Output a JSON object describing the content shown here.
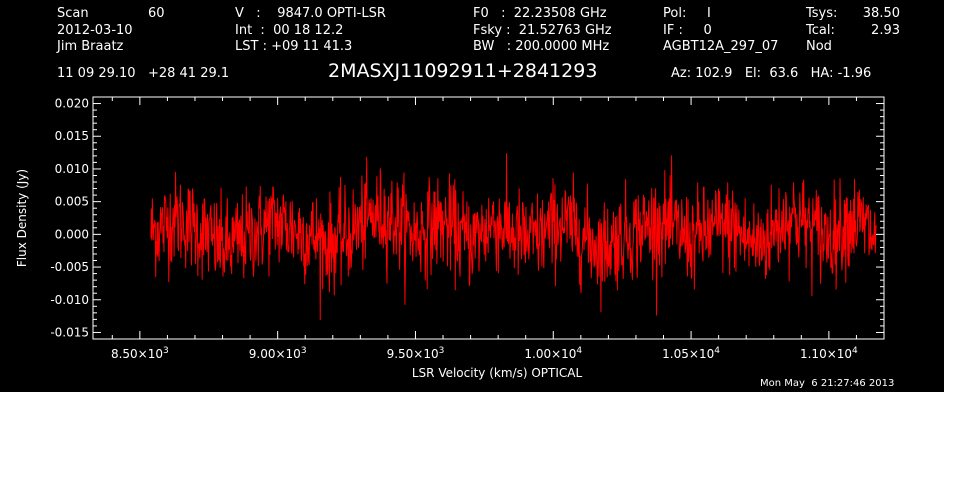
{
  "header": {
    "col1": {
      "scan_label": "Scan",
      "scan_value": "60",
      "date": "2012-03-10",
      "observer": "Jim Braatz"
    },
    "col2": {
      "v_line": "V   :    9847.0 OPTI-LSR",
      "int_line": "Int  :  00 18 12.2",
      "lst_line": "LST : +09 11 41.3"
    },
    "col3": {
      "f0_line": "F0   :  22.23508 GHz",
      "fsky_line": "Fsky :  21.52763 GHz",
      "bw_line": "BW   : 200.0000 MHz"
    },
    "col4": {
      "pol_line": "Pol:     I",
      "if_line": "IF :     0",
      "project": "AGBT12A_297_07"
    },
    "col5": {
      "tsys_label": "Tsys:",
      "tsys_value": "38.50",
      "tcal_label": "Tcal:",
      "tcal_value": "2.93",
      "mode": "Nod"
    },
    "coords": "11 09 29.10   +28 41 29.1",
    "source": "2MASXJ11092911+2841293",
    "az_el_ha": "Az: 102.9   El:  63.6   HA: -1.96",
    "timestamp": "Mon May  6 21:27:46 2013"
  },
  "colors": {
    "background": "#000000",
    "foreground": "#ffffff",
    "trace": "#ff0000"
  },
  "chart_data": {
    "type": "line",
    "title": "",
    "xlabel": "LSR Velocity (km/s) OPTICAL",
    "ylabel": "Flux Density (Jy)",
    "xlim": [
      8330,
      11200
    ],
    "ylim": [
      -0.016,
      0.021
    ],
    "x_ticks": [
      {
        "value": 8500,
        "mantissa": "8.50",
        "exp": "3"
      },
      {
        "value": 9000,
        "mantissa": "9.00",
        "exp": "3"
      },
      {
        "value": 9500,
        "mantissa": "9.50",
        "exp": "3"
      },
      {
        "value": 10000,
        "mantissa": "1.00",
        "exp": "4"
      },
      {
        "value": 10500,
        "mantissa": "1.05",
        "exp": "4"
      },
      {
        "value": 11000,
        "mantissa": "1.10",
        "exp": "4"
      }
    ],
    "y_ticks": [
      {
        "value": 0.02,
        "label": "0.020"
      },
      {
        "value": 0.015,
        "label": "0.015"
      },
      {
        "value": 0.01,
        "label": "0.010"
      },
      {
        "value": 0.005,
        "label": "0.005"
      },
      {
        "value": 0.0,
        "label": "0.000"
      },
      {
        "value": -0.005,
        "label": "-0.005"
      },
      {
        "value": -0.01,
        "label": "-0.010"
      },
      {
        "value": -0.015,
        "label": "-0.015"
      }
    ],
    "series": [
      {
        "color": "#ff0000",
        "x": [
          8540,
          8580,
          8620,
          8660,
          8700,
          8740,
          8780,
          8820,
          8860,
          8900,
          8940,
          8980,
          9020,
          9060,
          9100,
          9140,
          9180,
          9220,
          9260,
          9300,
          9340,
          9380,
          9420,
          9460,
          9500,
          9540,
          9580,
          9620,
          9660,
          9700,
          9740,
          9780,
          9820,
          9860,
          9900,
          9940,
          9980,
          10020,
          10060,
          10100,
          10140,
          10180,
          10220,
          10260,
          10300,
          10340,
          10380,
          10420,
          10460,
          10500,
          10540,
          10580,
          10620,
          10660,
          10700,
          10740,
          10780,
          10820,
          10860,
          10900,
          10940,
          10980,
          11020,
          11060,
          11100,
          11140,
          11172
        ],
        "y": [
          0.0005,
          0.001,
          0.0025,
          0.002,
          0.001,
          0.0,
          -0.0015,
          -0.002,
          -0.001,
          0.0,
          0.0008,
          0.002,
          0.0015,
          0.0008,
          0.0,
          -0.0005,
          -0.0015,
          -0.001,
          0.0,
          0.0015,
          0.0025,
          0.003,
          0.0022,
          0.0012,
          0.0,
          0.0008,
          0.0018,
          0.0012,
          0.0,
          -0.001,
          0.0002,
          0.0018,
          0.0012,
          0.0,
          -0.001,
          -0.0005,
          0.0005,
          0.0018,
          0.0012,
          0.0,
          -0.0012,
          -0.002,
          -0.001,
          0.0,
          0.0005,
          0.0012,
          0.0018,
          0.0012,
          0.0002,
          -0.0008,
          0.0,
          0.0008,
          0.0015,
          0.0008,
          -0.0008,
          -0.0015,
          -0.0005,
          0.0015,
          0.003,
          0.002,
          0.0008,
          -0.0002,
          0.0,
          0.0018,
          0.002,
          0.0008,
          -0.001
        ],
        "noise_rms": 0.0035
      }
    ]
  }
}
